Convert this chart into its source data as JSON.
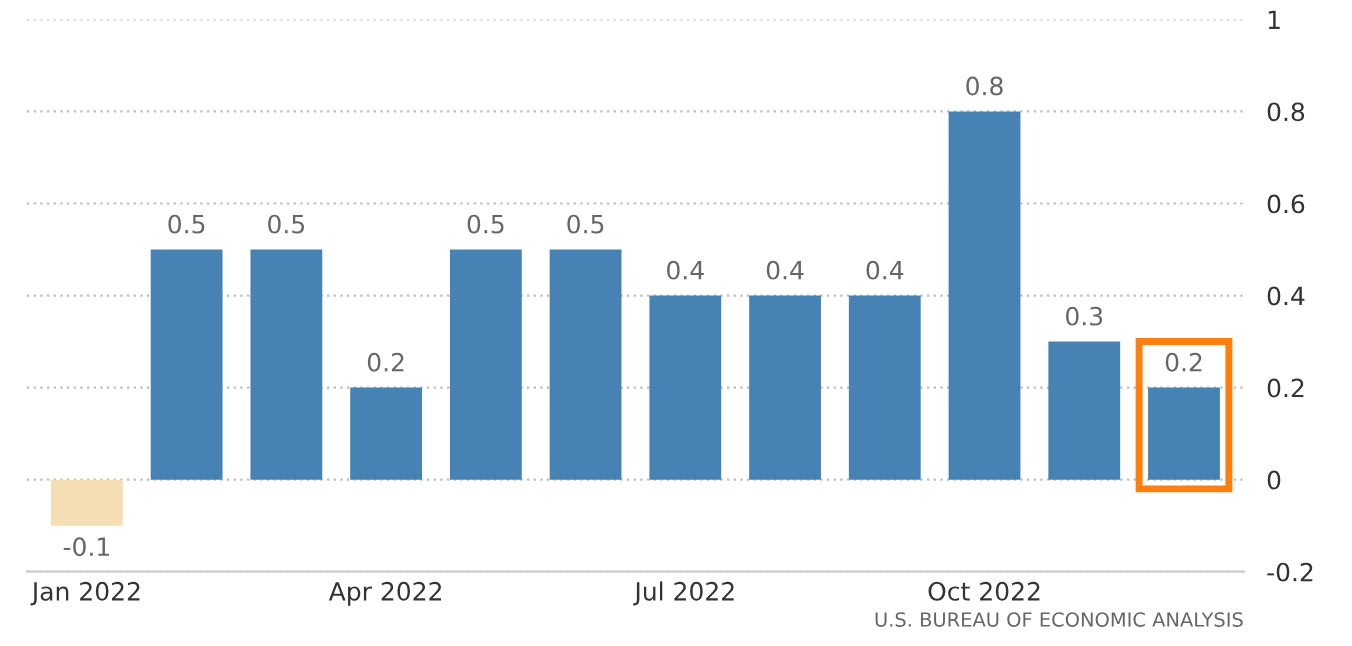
{
  "chart_data": {
    "type": "bar",
    "categories": [
      "Jan 2022",
      null,
      null,
      "Apr 2022",
      null,
      null,
      "Jul 2022",
      null,
      null,
      "Oct 2022",
      null,
      null
    ],
    "values": [
      -0.1,
      0.5,
      0.5,
      0.2,
      0.5,
      0.5,
      0.4,
      0.4,
      0.4,
      0.8,
      0.3,
      0.2
    ],
    "colors": [
      "#f5deb3",
      "#4682b4",
      "#4682b4",
      "#4682b4",
      "#4682b4",
      "#4682b4",
      "#4682b4",
      "#4682b4",
      "#4682b4",
      "#4682b4",
      "#4682b4",
      "#4682b4"
    ],
    "ylim": [
      -0.2,
      1
    ],
    "yticks": [
      -0.2,
      0,
      0.2,
      0.4,
      0.6,
      0.8,
      1
    ],
    "grid": "y",
    "data_labels": true,
    "annotations": [
      "U.S. BUREAU OF ECONOMIC ANALYSIS"
    ]
  }
}
